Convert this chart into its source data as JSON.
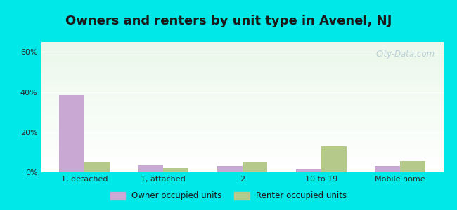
{
  "title": "Owners and renters by unit type in Avenel, NJ",
  "categories": [
    "1, detached",
    "1, attached",
    "2",
    "10 to 19",
    "Mobile home"
  ],
  "owner_values": [
    38.5,
    3.5,
    3.0,
    1.5,
    3.0
  ],
  "renter_values": [
    5.0,
    2.0,
    5.0,
    13.0,
    5.5
  ],
  "owner_color": "#c9a8d4",
  "renter_color": "#b5c98a",
  "owner_label": "Owner occupied units",
  "renter_label": "Renter occupied units",
  "ylim": [
    0,
    65
  ],
  "yticks": [
    0,
    20,
    40,
    60
  ],
  "ytick_labels": [
    "0%",
    "20%",
    "40%",
    "60%"
  ],
  "background_color": "#00e8e8",
  "title_fontsize": 13,
  "bar_width": 0.32,
  "watermark": "City-Data.com",
  "watermark_fontsize": 8.5
}
